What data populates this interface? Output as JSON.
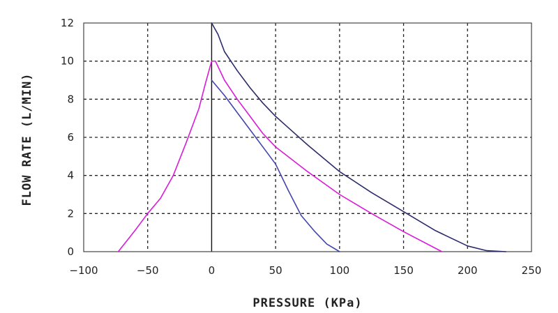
{
  "chart_data": {
    "type": "line",
    "title": "",
    "xlabel": "PRESSURE (KPa)",
    "ylabel": "FLOW RATE (L/MIN)",
    "xlim": [
      -100,
      250
    ],
    "ylim": [
      0,
      12
    ],
    "xticks": [
      -100,
      -50,
      0,
      50,
      100,
      150,
      200,
      250
    ],
    "yticks": [
      0,
      2,
      4,
      6,
      8,
      10,
      12
    ],
    "grid": true,
    "legend": "none",
    "series": [
      {
        "color": "#2b2b6b",
        "points": [
          [
            0,
            12
          ],
          [
            5,
            11.4
          ],
          [
            10,
            10.5
          ],
          [
            20,
            9.5
          ],
          [
            30,
            8.6
          ],
          [
            40,
            7.8
          ],
          [
            50,
            7.1
          ],
          [
            60,
            6.5
          ],
          [
            75,
            5.6
          ],
          [
            100,
            4.2
          ],
          [
            125,
            3.1
          ],
          [
            150,
            2.1
          ],
          [
            175,
            1.1
          ],
          [
            200,
            0.3
          ],
          [
            215,
            0.05
          ],
          [
            230,
            0
          ]
        ]
      },
      {
        "color": "#d81bd8",
        "points": [
          [
            -73,
            0
          ],
          [
            -60,
            1.1
          ],
          [
            -50,
            2.0
          ],
          [
            -40,
            2.8
          ],
          [
            -30,
            4.0
          ],
          [
            -20,
            5.7
          ],
          [
            -10,
            7.5
          ],
          [
            -5,
            8.8
          ],
          [
            0,
            10
          ],
          [
            3,
            10
          ],
          [
            10,
            9.0
          ],
          [
            20,
            8.0
          ],
          [
            30,
            7.1
          ],
          [
            40,
            6.2
          ],
          [
            50,
            5.5
          ],
          [
            75,
            4.2
          ],
          [
            100,
            3.0
          ],
          [
            125,
            2.0
          ],
          [
            150,
            1.05
          ],
          [
            180,
            0
          ]
        ]
      },
      {
        "color": "#4444aa",
        "points": [
          [
            0,
            9
          ],
          [
            10,
            8.2
          ],
          [
            20,
            7.3
          ],
          [
            30,
            6.4
          ],
          [
            40,
            5.5
          ],
          [
            50,
            4.6
          ],
          [
            60,
            3.2
          ],
          [
            70,
            1.9
          ],
          [
            80,
            1.1
          ],
          [
            90,
            0.4
          ],
          [
            100,
            0
          ]
        ]
      }
    ]
  }
}
